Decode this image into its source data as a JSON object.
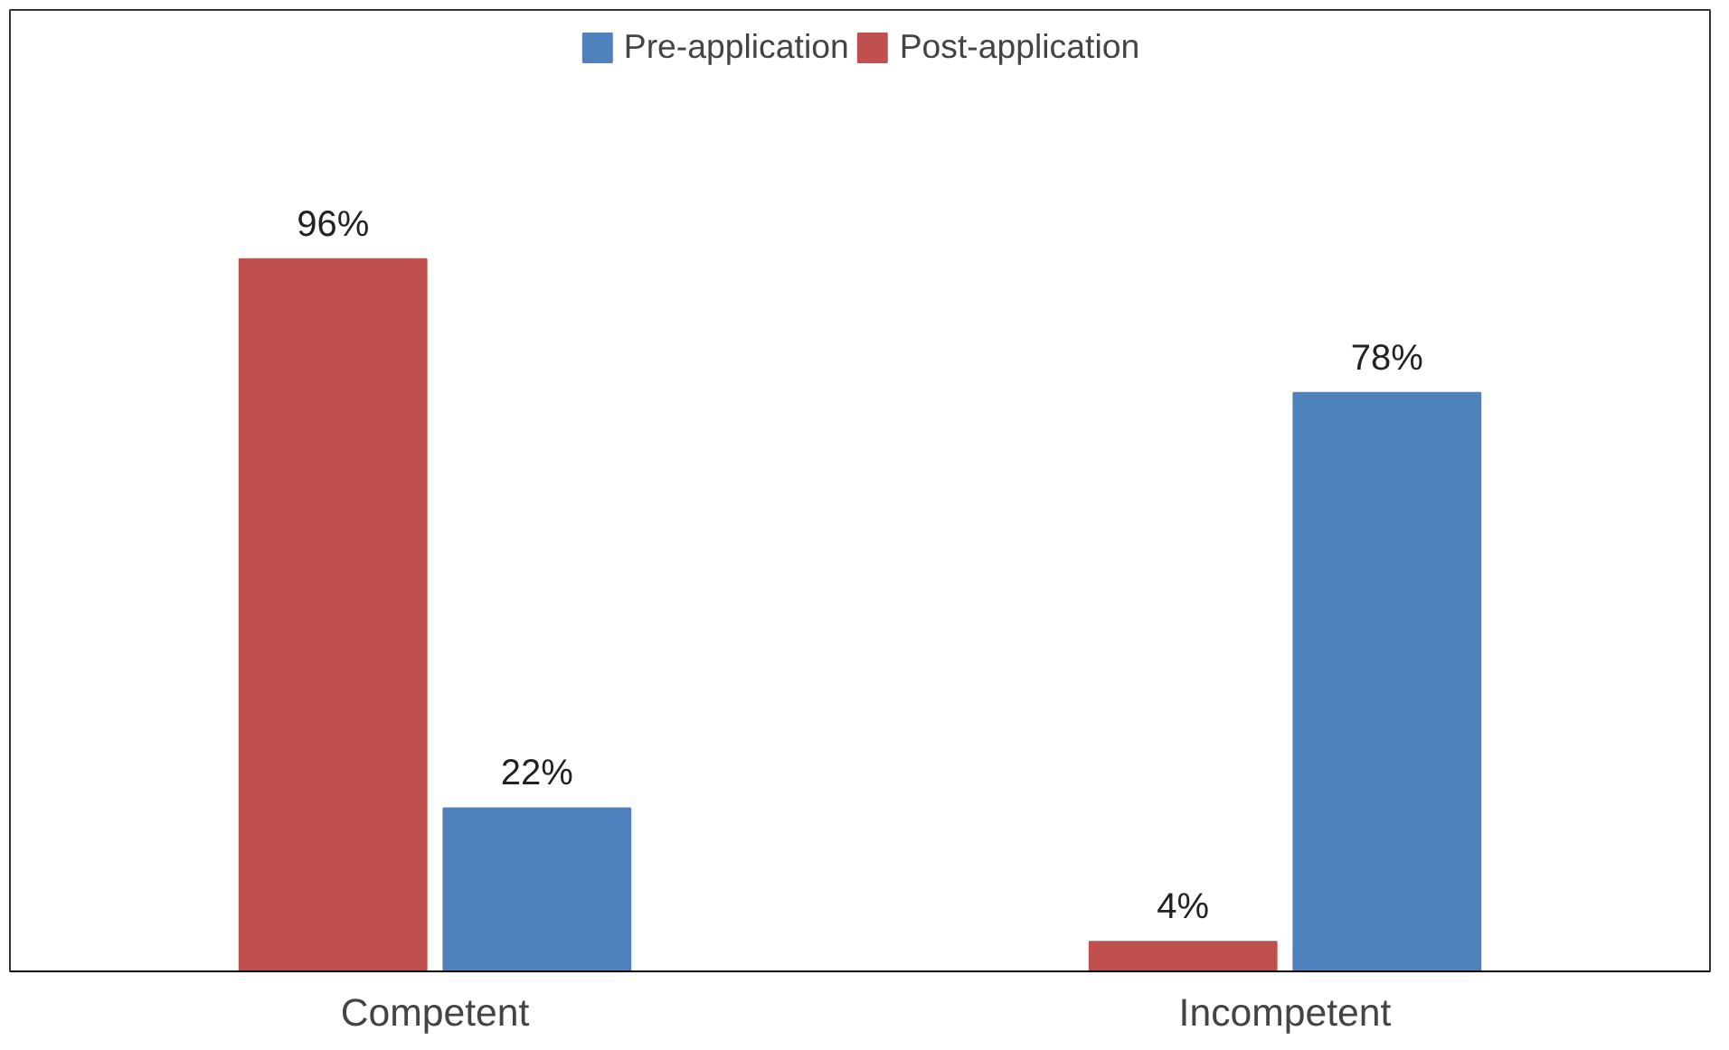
{
  "chart_data": {
    "type": "bar",
    "categories": [
      "Competent",
      "Incompetent"
    ],
    "series": [
      {
        "name": "Post-application",
        "color": "#c0504d",
        "values": [
          96,
          4
        ],
        "value_labels": [
          "96%",
          "4%"
        ]
      },
      {
        "name": "Pre-application",
        "color": "#4f81bd",
        "values": [
          22,
          78
        ],
        "value_labels": [
          "22%",
          "78%"
        ]
      }
    ],
    "legend": "top",
    "grid": false
  }
}
